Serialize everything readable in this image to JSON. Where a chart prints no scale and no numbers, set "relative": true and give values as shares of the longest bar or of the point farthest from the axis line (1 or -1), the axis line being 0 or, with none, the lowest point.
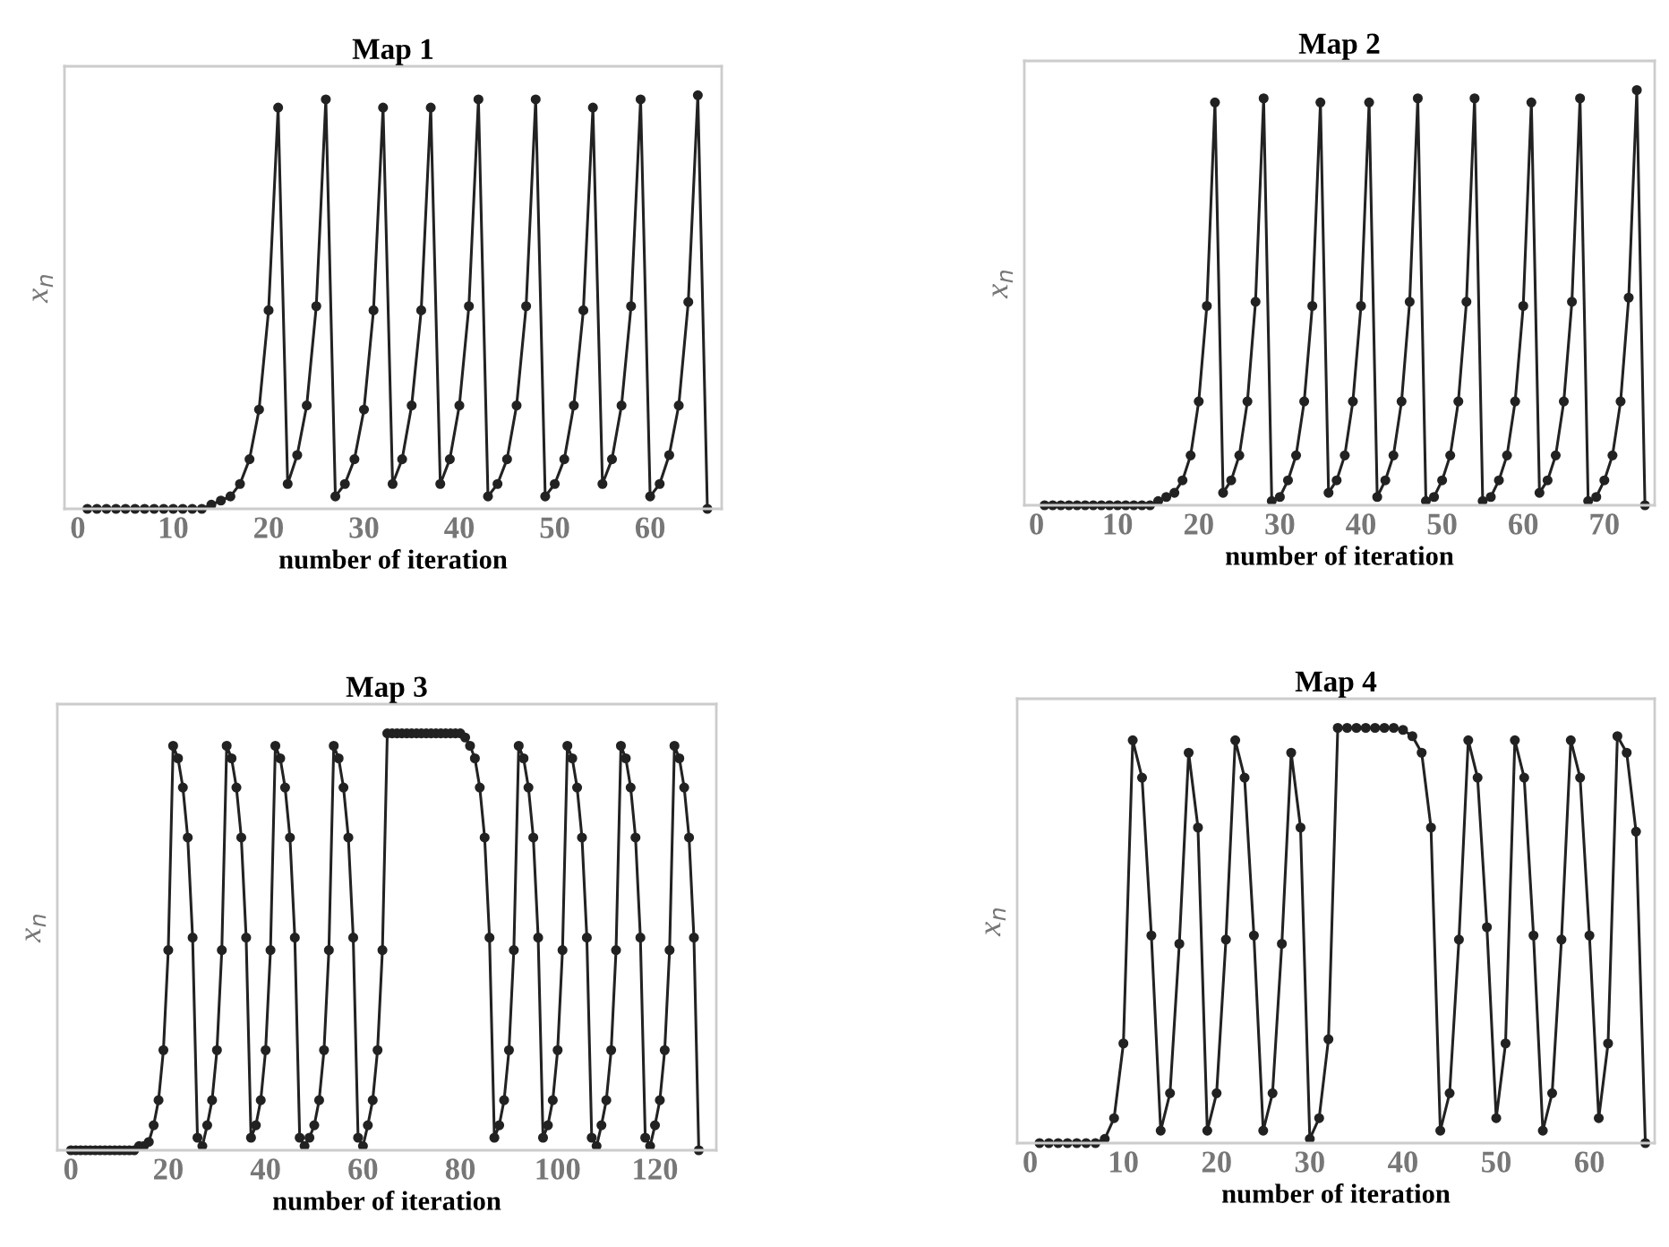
{
  "chart_data": [
    {
      "type": "line",
      "title": "Map 1",
      "xlabel": "number of iteration",
      "ylabel": "x$_{n}$",
      "relative": true,
      "marker": "circle",
      "line_style": "solid",
      "tick_labels": "x",
      "xlim": [
        -1.4,
        67.5
      ],
      "xticks": [
        0,
        10,
        20,
        30,
        40,
        50,
        60
      ],
      "series": [
        {
          "color": "#222222",
          "x": [
            1,
            2,
            3,
            4,
            5,
            6,
            7,
            8,
            9,
            10,
            11,
            12,
            13,
            14,
            15,
            16,
            17,
            18,
            19,
            20,
            21,
            22,
            23,
            24,
            25,
            26,
            27,
            28,
            29,
            30,
            31,
            32,
            33,
            34,
            35,
            36,
            37,
            38,
            39,
            40,
            41,
            42,
            43,
            44,
            45,
            46,
            47,
            48,
            49,
            50,
            51,
            52,
            53,
            54,
            55,
            56,
            57,
            58,
            59,
            60,
            61,
            62,
            63,
            64,
            65,
            66
          ],
          "values": [
            0,
            0,
            0,
            0,
            0,
            0,
            0,
            0,
            0,
            0,
            0,
            0,
            0,
            0.01,
            0.02,
            0.03,
            0.06,
            0.12,
            0.24,
            0.48,
            0.97,
            0.06,
            0.13,
            0.25,
            0.49,
            0.99,
            0.03,
            0.06,
            0.12,
            0.24,
            0.48,
            0.97,
            0.06,
            0.12,
            0.25,
            0.48,
            0.97,
            0.06,
            0.12,
            0.25,
            0.49,
            0.99,
            0.03,
            0.06,
            0.12,
            0.25,
            0.49,
            0.99,
            0.03,
            0.06,
            0.12,
            0.25,
            0.48,
            0.97,
            0.06,
            0.12,
            0.25,
            0.49,
            0.99,
            0.03,
            0.06,
            0.13,
            0.25,
            0.5,
            1.0,
            0
          ]
        }
      ]
    },
    {
      "type": "line",
      "title": "Map 2",
      "xlabel": "number of iteration",
      "ylabel": "x$_{n}$",
      "relative": true,
      "marker": "circle",
      "line_style": "solid",
      "tick_labels": "x",
      "xlim": [
        -1.5,
        76.2
      ],
      "xticks": [
        0,
        10,
        20,
        30,
        40,
        50,
        60,
        70
      ],
      "series": [
        {
          "color": "#222222",
          "x": [
            1,
            2,
            3,
            4,
            5,
            6,
            7,
            8,
            9,
            10,
            11,
            12,
            13,
            14,
            15,
            16,
            17,
            18,
            19,
            20,
            21,
            22,
            23,
            24,
            25,
            26,
            27,
            28,
            29,
            30,
            31,
            32,
            33,
            34,
            35,
            36,
            37,
            38,
            39,
            40,
            41,
            42,
            43,
            44,
            45,
            46,
            47,
            48,
            49,
            50,
            51,
            52,
            53,
            54,
            55,
            56,
            57,
            58,
            59,
            60,
            61,
            62,
            63,
            64,
            65,
            66,
            67,
            68,
            69,
            70,
            71,
            72,
            73,
            74,
            75
          ],
          "values": [
            0,
            0,
            0,
            0,
            0,
            0,
            0,
            0,
            0,
            0,
            0,
            0,
            0,
            0,
            0.01,
            0.02,
            0.03,
            0.06,
            0.12,
            0.25,
            0.48,
            0.97,
            0.03,
            0.06,
            0.12,
            0.25,
            0.49,
            0.98,
            0.01,
            0.02,
            0.06,
            0.12,
            0.25,
            0.48,
            0.97,
            0.03,
            0.06,
            0.12,
            0.25,
            0.48,
            0.97,
            0.02,
            0.06,
            0.12,
            0.25,
            0.49,
            0.98,
            0.01,
            0.02,
            0.06,
            0.12,
            0.25,
            0.49,
            0.98,
            0.01,
            0.02,
            0.06,
            0.12,
            0.25,
            0.48,
            0.97,
            0.03,
            0.06,
            0.12,
            0.25,
            0.49,
            0.98,
            0.01,
            0.02,
            0.06,
            0.12,
            0.25,
            0.5,
            1.0,
            0
          ]
        }
      ]
    },
    {
      "type": "line",
      "title": "Map 3",
      "xlabel": "number of iteration",
      "ylabel": "x$_{n}$",
      "relative": true,
      "marker": "circle",
      "line_style": "solid",
      "tick_labels": "x",
      "xlim": [
        -2.8,
        132.6
      ],
      "xticks": [
        0,
        20,
        40,
        60,
        80,
        100,
        120
      ],
      "series": [
        {
          "color": "#222222",
          "x": [
            0,
            1,
            2,
            3,
            4,
            5,
            6,
            7,
            8,
            9,
            10,
            11,
            12,
            13,
            14,
            15,
            16,
            17,
            18,
            19,
            20,
            21,
            22,
            23,
            24,
            25,
            26,
            27,
            28,
            29,
            30,
            31,
            32,
            33,
            34,
            35,
            36,
            37,
            38,
            39,
            40,
            41,
            42,
            43,
            44,
            45,
            46,
            47,
            48,
            49,
            50,
            51,
            52,
            53,
            54,
            55,
            56,
            57,
            58,
            59,
            60,
            61,
            62,
            63,
            64,
            65,
            66,
            67,
            68,
            69,
            70,
            71,
            72,
            73,
            74,
            75,
            76,
            77,
            78,
            79,
            80,
            81,
            82,
            83,
            84,
            85,
            86,
            87,
            88,
            89,
            90,
            91,
            92,
            93,
            94,
            95,
            96,
            97,
            98,
            99,
            100,
            101,
            102,
            103,
            104,
            105,
            106,
            107,
            108,
            109,
            110,
            111,
            112,
            113,
            114,
            115,
            116,
            117,
            118,
            119,
            120,
            121,
            122,
            123,
            124,
            125,
            126,
            127,
            128,
            129
          ],
          "values": [
            0,
            0,
            0,
            0,
            0,
            0,
            0,
            0,
            0,
            0,
            0,
            0,
            0,
            0,
            0.01,
            0.01,
            0.02,
            0.06,
            0.12,
            0.24,
            0.48,
            0.97,
            0.94,
            0.87,
            0.75,
            0.51,
            0.03,
            0.01,
            0.06,
            0.12,
            0.24,
            0.48,
            0.97,
            0.94,
            0.87,
            0.75,
            0.51,
            0.03,
            0.06,
            0.12,
            0.24,
            0.48,
            0.97,
            0.94,
            0.87,
            0.75,
            0.51,
            0.03,
            0.01,
            0.03,
            0.06,
            0.12,
            0.24,
            0.48,
            0.97,
            0.94,
            0.87,
            0.75,
            0.51,
            0.03,
            0.01,
            0.06,
            0.12,
            0.24,
            0.48,
            1,
            1,
            1,
            1,
            1,
            1,
            1,
            1,
            1,
            1,
            1,
            1,
            1,
            1,
            1,
            1,
            0.99,
            0.97,
            0.94,
            0.87,
            0.75,
            0.51,
            0.03,
            0.06,
            0.12,
            0.24,
            0.48,
            0.97,
            0.94,
            0.87,
            0.75,
            0.51,
            0.03,
            0.06,
            0.12,
            0.24,
            0.48,
            0.97,
            0.94,
            0.87,
            0.75,
            0.51,
            0.03,
            0.01,
            0.06,
            0.12,
            0.24,
            0.48,
            0.97,
            0.94,
            0.87,
            0.75,
            0.51,
            0.03,
            0.01,
            0.06,
            0.12,
            0.24,
            0.48,
            0.97,
            0.94,
            0.87,
            0.75,
            0.51,
            0
          ]
        }
      ]
    },
    {
      "type": "line",
      "title": "Map 4",
      "xlabel": "number of iteration",
      "ylabel": "x$_{n}$",
      "relative": true,
      "marker": "circle",
      "line_style": "solid",
      "tick_labels": "x",
      "xlim": [
        -1.4,
        67
      ],
      "xticks": [
        0,
        10,
        20,
        30,
        40,
        50,
        60
      ],
      "series": [
        {
          "color": "#222222",
          "x": [
            1,
            2,
            3,
            4,
            5,
            6,
            7,
            8,
            9,
            10,
            11,
            12,
            13,
            14,
            15,
            16,
            17,
            18,
            19,
            20,
            21,
            22,
            23,
            24,
            25,
            26,
            27,
            28,
            29,
            30,
            31,
            32,
            33,
            34,
            35,
            36,
            37,
            38,
            39,
            40,
            41,
            42,
            43,
            44,
            45,
            46,
            47,
            48,
            49,
            50,
            51,
            52,
            53,
            54,
            55,
            56,
            57,
            58,
            59,
            60,
            61,
            62,
            63,
            64,
            65,
            66
          ],
          "values": [
            0,
            0,
            0,
            0,
            0,
            0,
            0,
            0.01,
            0.06,
            0.24,
            0.97,
            0.88,
            0.5,
            0.03,
            0.12,
            0.48,
            0.94,
            0.76,
            0.03,
            0.12,
            0.49,
            0.97,
            0.88,
            0.5,
            0.03,
            0.12,
            0.48,
            0.94,
            0.76,
            0.01,
            0.06,
            0.25,
            1,
            1,
            1,
            1,
            1,
            1,
            1,
            0.995,
            0.98,
            0.94,
            0.76,
            0.03,
            0.12,
            0.49,
            0.97,
            0.88,
            0.52,
            0.06,
            0.24,
            0.97,
            0.88,
            0.5,
            0.03,
            0.12,
            0.49,
            0.97,
            0.88,
            0.5,
            0.06,
            0.24,
            0.98,
            0.94,
            0.75,
            0
          ]
        }
      ]
    }
  ]
}
